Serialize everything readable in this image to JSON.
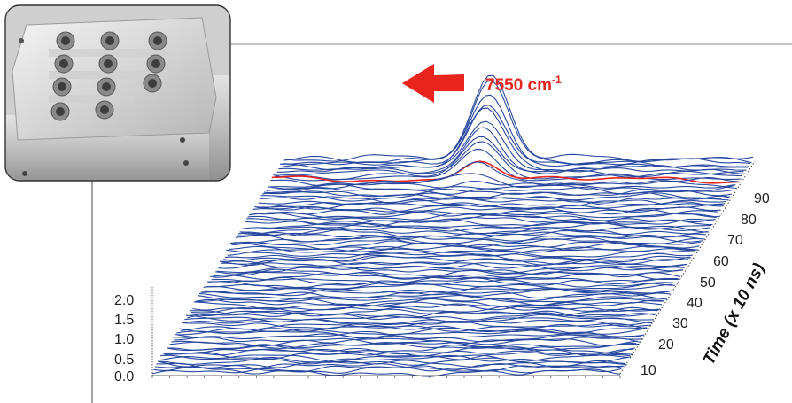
{
  "chart_data": {
    "type": "waterfall-3d",
    "title": "",
    "z_axis": {
      "ticks": [
        "0.0",
        "0.5",
        "1.0",
        "1.5",
        "2.0"
      ],
      "range": [
        0,
        2.0
      ]
    },
    "time_axis": {
      "label": "Time (x 10 ns)",
      "ticks": [
        "10",
        "20",
        "30",
        "40",
        "50",
        "60",
        "70",
        "80",
        "90"
      ],
      "range": [
        0,
        100
      ]
    },
    "num_traces": 100,
    "peak": {
      "time_start": 84,
      "time_apex": 100,
      "max_height": 2.0,
      "highlighted_trace_time": 90
    },
    "annotation": {
      "text": "7550 cm",
      "superscript": "-1"
    },
    "colors": {
      "traces": "#2848a0",
      "highlight": "#e8241c",
      "annotation": "#e8241c"
    }
  }
}
